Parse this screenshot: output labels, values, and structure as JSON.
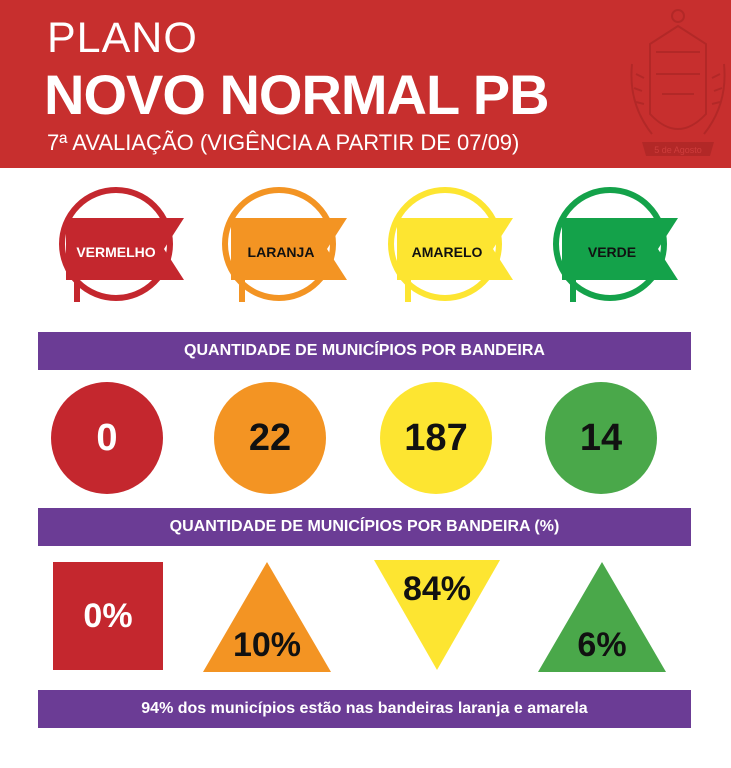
{
  "header": {
    "kicker": "PLANO",
    "title": "NOVO NORMAL PB",
    "subtitle": "7ª AVALIAÇÃO (VIGÊNCIA A PARTIR DE 07/09)",
    "seal_text": "5 de Agosto",
    "bg": "#c72f2e"
  },
  "flags": [
    {
      "label": "VERMELHO",
      "color": "#c4272e"
    },
    {
      "label": "LARANJA",
      "color": "#f39423"
    },
    {
      "label": "AMARELO",
      "color": "#fde531"
    },
    {
      "label": "VERDE",
      "color": "#14a24a"
    }
  ],
  "band_counts": {
    "label": "QUANTIDADE DE MUNICÍPIOS POR BANDEIRA"
  },
  "counts": [
    {
      "value": "0",
      "color": "#c4272e",
      "text_color": "#ffffff"
    },
    {
      "value": "22",
      "color": "#f39423",
      "text_color": "#111111"
    },
    {
      "value": "187",
      "color": "#fde531",
      "text_color": "#111111"
    },
    {
      "value": "14",
      "color": "#4aa84a",
      "text_color": "#111111"
    }
  ],
  "band_percent": {
    "label": "QUANTIDADE DE MUNICÍPIOS POR BANDEIRA (%)"
  },
  "percents": [
    {
      "value": "0%",
      "color": "#c4272e",
      "shape": "square",
      "text_color": "#ffffff"
    },
    {
      "value": "10%",
      "color": "#f39423",
      "shape": "triangle-up",
      "text_color": "#111111"
    },
    {
      "value": "84%",
      "color": "#fde531",
      "shape": "triangle-down",
      "text_color": "#111111"
    },
    {
      "value": "6%",
      "color": "#4aa84a",
      "shape": "triangle-up",
      "text_color": "#111111"
    }
  ],
  "footer": {
    "label": "94% dos municípios estão nas bandeiras laranja e amarela"
  },
  "band_color": "#6b3c95"
}
